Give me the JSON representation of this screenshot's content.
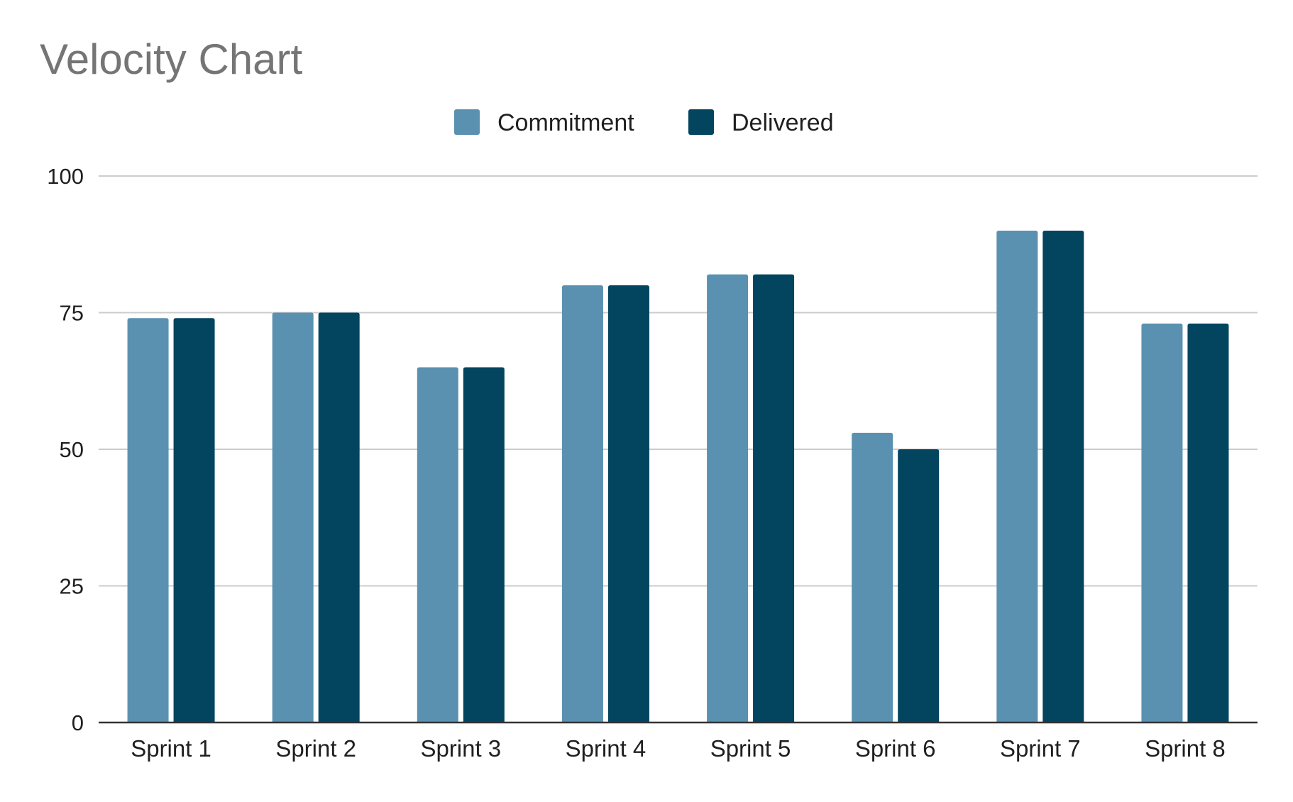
{
  "chart_data": {
    "type": "bar",
    "title": "Velocity Chart",
    "xlabel": "",
    "ylabel": "",
    "categories": [
      "Sprint 1",
      "Sprint 2",
      "Sprint 3",
      "Sprint 4",
      "Sprint 5",
      "Sprint 6",
      "Sprint 7",
      "Sprint 8"
    ],
    "series": [
      {
        "name": "Commitment",
        "color": "#5a91b0",
        "values": [
          74,
          75,
          65,
          80,
          82,
          53,
          90,
          73
        ]
      },
      {
        "name": "Delivered",
        "color": "#03445f",
        "values": [
          74,
          75,
          65,
          80,
          82,
          50,
          90,
          73
        ]
      }
    ],
    "ylim": [
      0,
      100
    ],
    "yticks": [
      "0",
      "25",
      "50",
      "75",
      "100"
    ],
    "grid": true,
    "legend_position": "top-center",
    "colors": {
      "title": "#757575",
      "text": "#1f1f1f",
      "grid": "#cccccc",
      "axis": "#333333"
    }
  }
}
